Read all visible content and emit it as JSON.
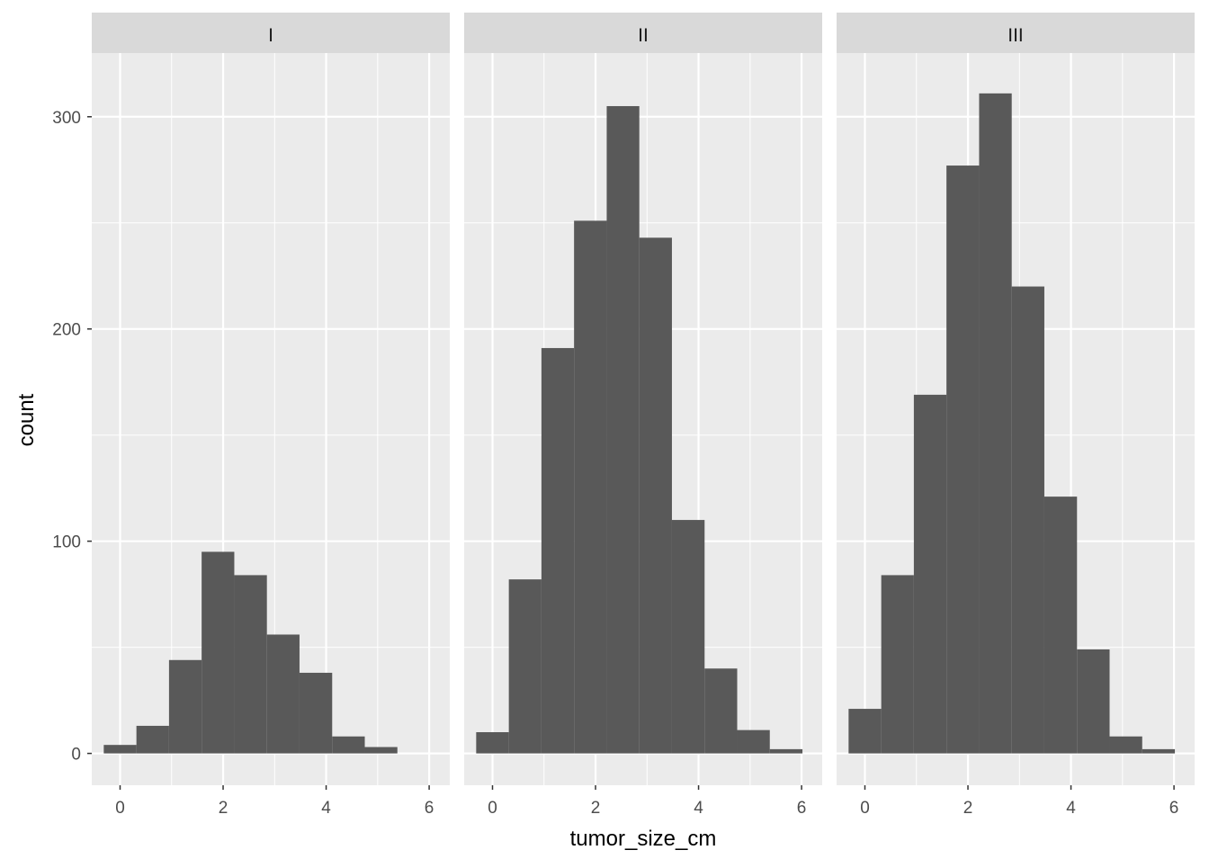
{
  "chart_data": {
    "type": "bar",
    "subtype": "faceted-histogram",
    "xlabel": "tumor_size_cm",
    "ylabel": "count",
    "xlim": [
      -0.55,
      6.4
    ],
    "ylim": [
      -15,
      330
    ],
    "x_ticks": [
      0,
      2,
      4,
      6
    ],
    "y_ticks": [
      0,
      100,
      200,
      300
    ],
    "grid": true,
    "bin_edges": [
      -0.317,
      0.317,
      0.95,
      1.583,
      2.217,
      2.85,
      3.483,
      4.117,
      4.75,
      5.383,
      6.017
    ],
    "bin_centers": [
      0.0,
      0.633,
      1.267,
      1.9,
      2.533,
      3.167,
      3.8,
      4.433,
      5.067,
      5.7
    ],
    "colors": {
      "bar": "#595959",
      "panel_bg": "#ebebeb",
      "strip_bg": "#d9d9d9",
      "grid": "#ffffff",
      "text": "#1a1a1a",
      "tick_text": "#4d4d4d"
    },
    "panels": [
      {
        "strip": "I",
        "counts": [
          4,
          13,
          44,
          95,
          84,
          56,
          38,
          8,
          3,
          0
        ]
      },
      {
        "strip": "II",
        "counts": [
          10,
          82,
          191,
          251,
          305,
          243,
          110,
          40,
          11,
          2
        ]
      },
      {
        "strip": "III",
        "counts": [
          21,
          84,
          169,
          277,
          311,
          220,
          121,
          49,
          8,
          2
        ]
      }
    ]
  }
}
